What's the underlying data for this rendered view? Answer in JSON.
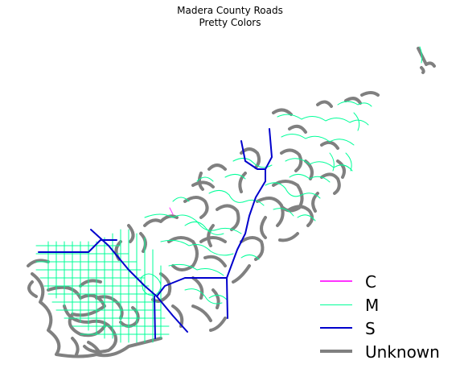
{
  "title": "Madera County Roads",
  "subtitle": "Pretty Colors",
  "colors": {
    "C": "#ff33ff",
    "M": "#00ff99",
    "S": "#0000cc",
    "Unknown": "#808080"
  },
  "legend": [
    {
      "label": "C",
      "color": "#ff33ff"
    },
    {
      "label": "M",
      "color": "#00ff99"
    },
    {
      "label": "S",
      "color": "#0000cc"
    },
    {
      "label": "Unknown",
      "color": "#808080"
    }
  ]
}
